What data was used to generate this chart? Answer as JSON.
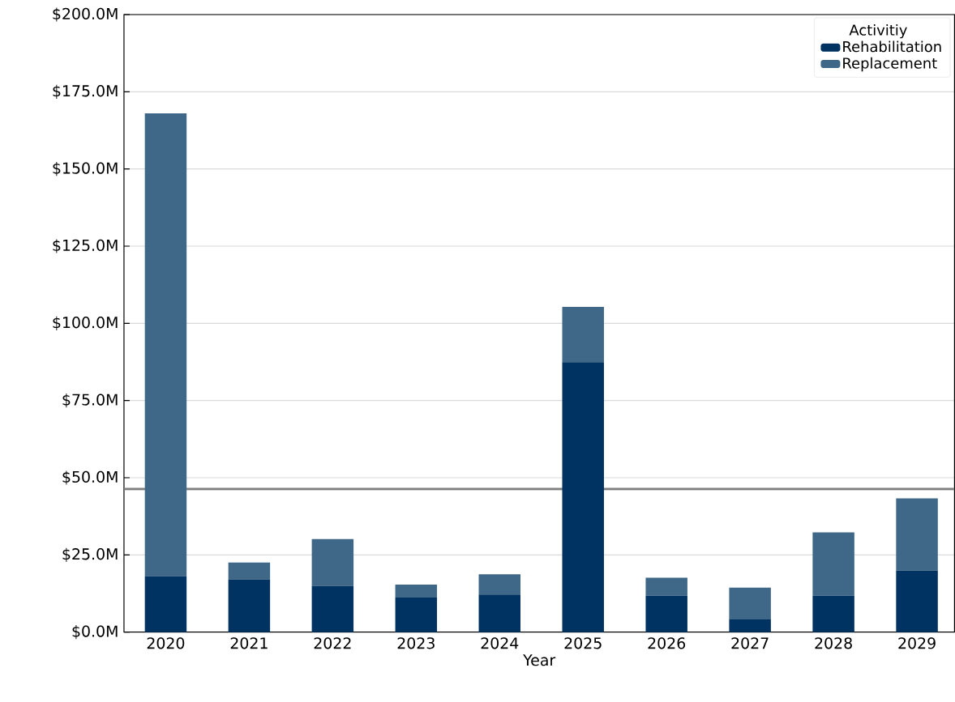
{
  "chart_data": {
    "type": "bar",
    "stacked": true,
    "xlabel": "Year",
    "legend_title": "Activitiy",
    "categories": [
      "2020",
      "2021",
      "2022",
      "2023",
      "2024",
      "2025",
      "2026",
      "2027",
      "2028",
      "2029"
    ],
    "series": [
      {
        "name": "Rehabilitation",
        "color": "#003361",
        "values": [
          18.1,
          17.1,
          15.0,
          11.2,
          12.2,
          87.4,
          11.8,
          4.1,
          11.8,
          19.9
        ]
      },
      {
        "name": "Replacement",
        "color": "#3f6888",
        "values": [
          149.9,
          5.4,
          15.1,
          4.2,
          6.5,
          17.9,
          5.8,
          10.3,
          20.5,
          23.4
        ]
      }
    ],
    "ylim": [
      0,
      200
    ],
    "yticks": [
      {
        "value": 0,
        "label": "$0.0M"
      },
      {
        "value": 25,
        "label": "$25.0M"
      },
      {
        "value": 50,
        "label": "$50.0M"
      },
      {
        "value": 75,
        "label": "$75.0M"
      },
      {
        "value": 100,
        "label": "$100.0M"
      },
      {
        "value": 125,
        "label": "$125.0M"
      },
      {
        "value": 150,
        "label": "$150.0M"
      },
      {
        "value": 175,
        "label": "$175.0M"
      },
      {
        "value": 200,
        "label": "$200.0M"
      }
    ],
    "grid": "y",
    "legend": "top right",
    "ref_lines": [
      {
        "axis": "y",
        "value": 46.3,
        "color": "#808080"
      }
    ]
  }
}
